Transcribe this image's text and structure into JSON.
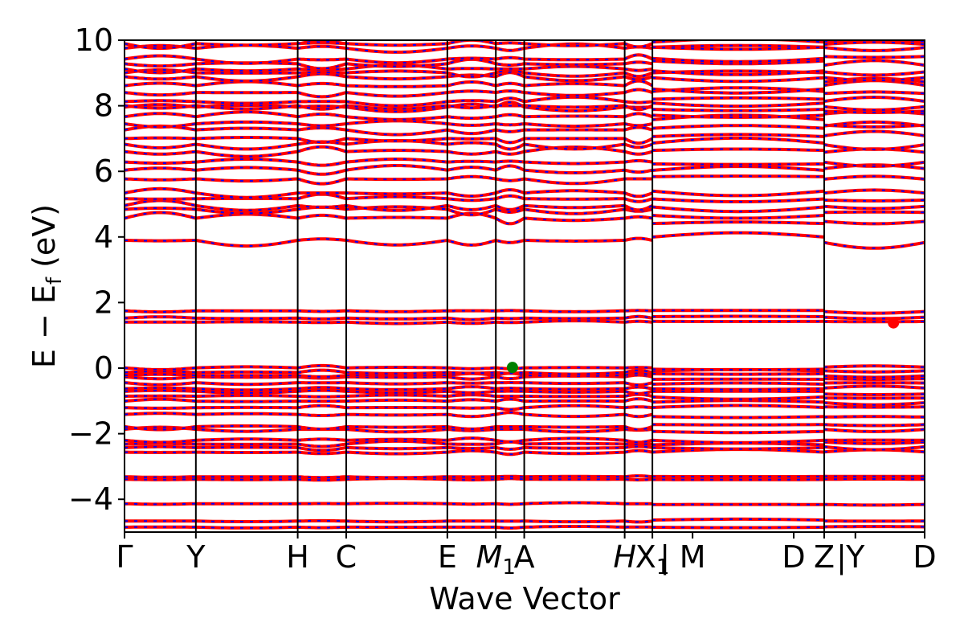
{
  "chart_data": {
    "type": "line",
    "xlabel": "Wave Vector",
    "ylabel": "E − E_f (eV)",
    "ylabel_parts": {
      "main": "E − E",
      "sub": "f",
      "unit": " (eV)"
    },
    "ylim": [
      -5,
      10
    ],
    "xlim": [
      0,
      11.55
    ],
    "yticks": [
      10,
      8,
      6,
      4,
      2,
      0,
      -2,
      -4
    ],
    "ytick_labels": [
      "10",
      "8",
      "6",
      "4",
      "2",
      "0",
      "−2",
      "−4"
    ],
    "kpoints": [
      {
        "x": 0.0,
        "label": "Γ"
      },
      {
        "x": 1.03,
        "label": "Y"
      },
      {
        "x": 2.5,
        "label": "H"
      },
      {
        "x": 3.2,
        "label": "C"
      },
      {
        "x": 4.66,
        "label": "E"
      },
      {
        "x": 5.36,
        "label": "M",
        "sub": "1",
        "italic": true
      },
      {
        "x": 5.77,
        "label": "A"
      },
      {
        "x": 7.22,
        "label": "H",
        "italic": true
      },
      {
        "x": 7.62,
        "label": "X",
        "sub": "1"
      },
      {
        "x": 7.8,
        "label": "|"
      },
      {
        "x": 8.2,
        "label": "M"
      },
      {
        "x": 9.66,
        "label": "D"
      },
      {
        "x": 10.1,
        "label": "Z"
      },
      {
        "x": 10.35,
        "label": "|"
      },
      {
        "x": 10.55,
        "label": "Y"
      },
      {
        "x": 11.55,
        "label": "D"
      }
    ],
    "vlines": [
      1.03,
      2.5,
      3.2,
      4.66,
      5.36,
      5.77,
      7.22,
      7.62,
      10.1,
      11.55
    ],
    "segments": [
      [
        0.0,
        7.62
      ],
      [
        7.62,
        10.1
      ],
      [
        10.1,
        11.55
      ]
    ],
    "band_groups": [
      {
        "name": "deep-valence",
        "levels": [
          -4.85,
          -4.65,
          -4.15,
          -3.4,
          -3.3
        ],
        "spread": 0.06
      },
      {
        "name": "valence-low",
        "levels": [
          -2.6,
          -2.45,
          -2.3,
          -2.15,
          -1.9,
          -1.75
        ],
        "spread": 0.18
      },
      {
        "name": "valence-top",
        "levels": [
          -1.45,
          -1.2,
          -1.05,
          -0.9,
          -0.75,
          -0.6,
          -0.45,
          -0.3,
          -0.2,
          -0.1,
          0.0
        ],
        "spread": 0.15
      },
      {
        "name": "mid-gap",
        "levels": [
          1.4,
          1.55,
          1.75
        ],
        "spread": 0.1
      },
      {
        "name": "conduction-1",
        "levels": [
          3.9,
          4.5,
          4.75,
          4.95,
          5.1,
          5.35
        ],
        "spread": 0.35
      },
      {
        "name": "conduction-2",
        "levels": [
          5.85,
          6.05,
          6.3,
          6.6,
          6.9,
          7.05
        ],
        "spread": 0.3
      },
      {
        "name": "conduction-3",
        "levels": [
          7.3,
          7.5,
          7.7,
          7.9,
          8.05,
          8.2,
          8.4,
          8.6,
          8.8,
          8.95,
          9.1,
          9.3,
          9.5,
          9.7,
          9.85,
          10.0
        ],
        "spread": 0.3
      }
    ],
    "markers": [
      {
        "name": "vbm-marker",
        "x": 5.6,
        "y": 0.02,
        "color": "#008000"
      },
      {
        "name": "cbm-marker",
        "x": 11.1,
        "y": 1.38,
        "color": "#ff0000"
      }
    ],
    "colors": {
      "band_main": "#ff0000",
      "band_dash": "#0000ff",
      "vline": "#000000"
    }
  }
}
